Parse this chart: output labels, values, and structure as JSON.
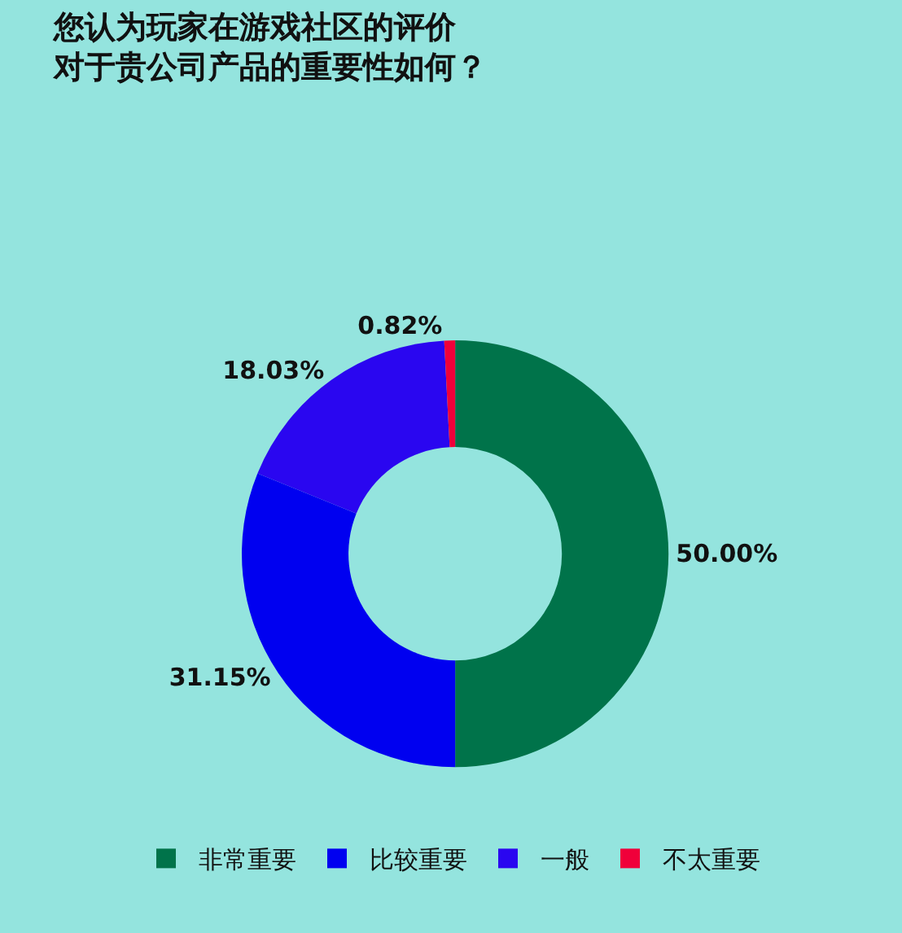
{
  "chart_data": {
    "type": "donut",
    "title": "您认为玩家在游戏社区的评价对于贵公司产品的重要性如何？",
    "categories": [
      "非常重要",
      "比较重要",
      "一般",
      "不太重要"
    ],
    "values": [
      50.0,
      31.15,
      18.03,
      0.82
    ],
    "value_labels": [
      "50.00%",
      "31.15%",
      "18.03%",
      "0.82%"
    ],
    "colors": [
      "#00734a",
      "#0000f0",
      "#2a06f0",
      "#f0003a"
    ],
    "legend": "bottom"
  }
}
